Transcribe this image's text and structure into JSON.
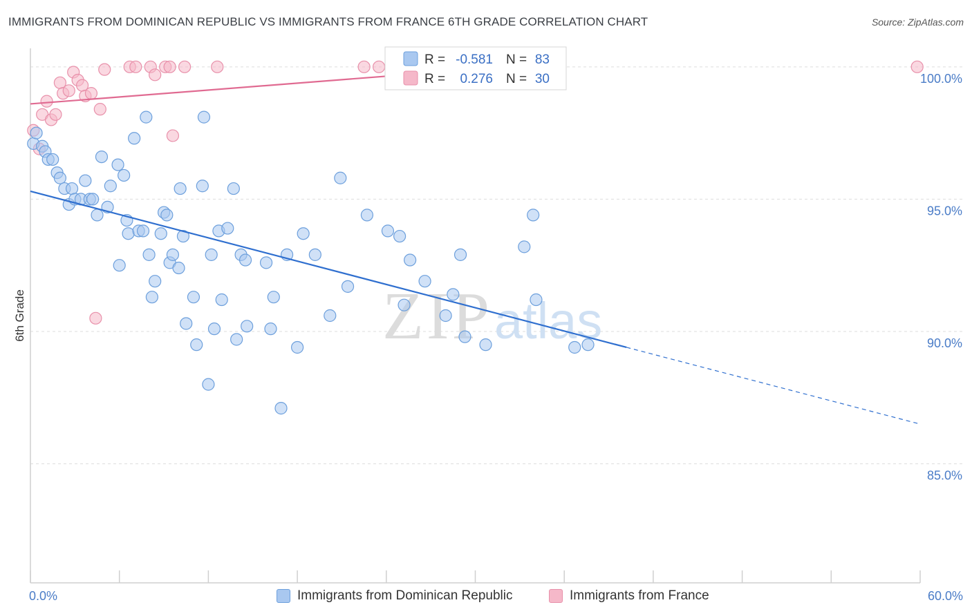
{
  "header": {
    "title": "IMMIGRANTS FROM DOMINICAN REPUBLIC VS IMMIGRANTS FROM FRANCE 6TH GRADE CORRELATION CHART",
    "source": "Source: ZipAtlas.com"
  },
  "watermark": {
    "zip": "ZIP",
    "atlas": "atlas"
  },
  "stats_box": {
    "rows": [
      {
        "r_label": "R =",
        "r_value": "-0.581",
        "n_label": "N =",
        "n_value": "83"
      },
      {
        "r_label": "R =",
        "r_value": "0.276",
        "n_label": "N =",
        "n_value": "30"
      }
    ]
  },
  "legend": {
    "series_a": "Immigrants from Dominican Republic",
    "series_b": "Immigrants from France"
  },
  "colors": {
    "blue_fill": "#a9c8f0",
    "blue_stroke": "#6c9fdc",
    "blue_line": "#2f6fcf",
    "pink_fill": "#f5b8c9",
    "pink_stroke": "#e890aa",
    "pink_line": "#e06a91",
    "tick_label": "#4a7cc7",
    "grid": "#dddddd"
  },
  "chart_data": {
    "type": "scatter",
    "title": "IMMIGRANTS FROM DOMINICAN REPUBLIC VS IMMIGRANTS FROM FRANCE 6TH GRADE CORRELATION CHART",
    "xlabel": "",
    "ylabel": "6th Grade",
    "xlim": [
      0,
      60
    ],
    "ylim": [
      80.5,
      100.7
    ],
    "x_tick_labels": [
      {
        "value": 0,
        "label": "0.0%"
      },
      {
        "value": 60,
        "label": "60.0%"
      }
    ],
    "y_ticks": [
      {
        "value": 100,
        "label": "100.0%"
      },
      {
        "value": 95,
        "label": "95.0%"
      },
      {
        "value": 90,
        "label": "90.0%"
      },
      {
        "value": 85,
        "label": "85.0%"
      }
    ],
    "grid": true,
    "legend_position": "bottom",
    "series": [
      {
        "name": "Immigrants from Dominican Republic",
        "color": "#a9c8f0",
        "trend": {
          "x": [
            0,
            40.2
          ],
          "y": [
            95.3,
            89.4
          ],
          "dashed_to": [
            60,
            86.5
          ]
        },
        "points": [
          [
            0.2,
            97.1
          ],
          [
            0.4,
            97.5
          ],
          [
            0.8,
            97.0
          ],
          [
            1.0,
            96.8
          ],
          [
            1.2,
            96.5
          ],
          [
            1.5,
            96.5
          ],
          [
            1.8,
            96.0
          ],
          [
            2.0,
            95.8
          ],
          [
            2.3,
            95.4
          ],
          [
            2.6,
            94.8
          ],
          [
            2.8,
            95.4
          ],
          [
            3.0,
            95.0
          ],
          [
            3.4,
            95.0
          ],
          [
            3.7,
            95.7
          ],
          [
            4.0,
            95.0
          ],
          [
            4.2,
            95.0
          ],
          [
            4.5,
            94.4
          ],
          [
            4.8,
            96.6
          ],
          [
            5.2,
            94.7
          ],
          [
            5.4,
            95.5
          ],
          [
            5.9,
            96.3
          ],
          [
            6.0,
            92.5
          ],
          [
            6.3,
            95.9
          ],
          [
            6.5,
            94.2
          ],
          [
            6.6,
            93.7
          ],
          [
            7.0,
            97.3
          ],
          [
            7.3,
            93.8
          ],
          [
            7.6,
            93.8
          ],
          [
            7.8,
            98.1
          ],
          [
            8.0,
            92.9
          ],
          [
            8.2,
            91.3
          ],
          [
            8.4,
            91.9
          ],
          [
            8.8,
            93.7
          ],
          [
            9.0,
            94.5
          ],
          [
            9.2,
            94.4
          ],
          [
            9.4,
            92.6
          ],
          [
            9.6,
            92.9
          ],
          [
            10.0,
            92.4
          ],
          [
            10.1,
            95.4
          ],
          [
            10.3,
            93.6
          ],
          [
            10.5,
            90.3
          ],
          [
            11.0,
            91.3
          ],
          [
            11.2,
            89.5
          ],
          [
            11.6,
            95.5
          ],
          [
            11.7,
            98.1
          ],
          [
            12.0,
            88.0
          ],
          [
            12.2,
            92.9
          ],
          [
            12.4,
            90.1
          ],
          [
            12.7,
            93.8
          ],
          [
            12.9,
            91.2
          ],
          [
            13.3,
            93.9
          ],
          [
            13.7,
            95.4
          ],
          [
            13.9,
            89.7
          ],
          [
            14.2,
            92.9
          ],
          [
            14.5,
            92.7
          ],
          [
            14.6,
            90.2
          ],
          [
            15.9,
            92.6
          ],
          [
            16.2,
            90.1
          ],
          [
            16.4,
            91.3
          ],
          [
            16.9,
            87.1
          ],
          [
            17.3,
            92.9
          ],
          [
            18.0,
            89.4
          ],
          [
            18.4,
            93.7
          ],
          [
            19.2,
            92.9
          ],
          [
            20.2,
            90.6
          ],
          [
            20.9,
            95.8
          ],
          [
            21.4,
            91.7
          ],
          [
            22.7,
            94.4
          ],
          [
            24.1,
            93.8
          ],
          [
            24.9,
            93.6
          ],
          [
            25.2,
            91.0
          ],
          [
            25.6,
            92.7
          ],
          [
            26.6,
            91.9
          ],
          [
            28.0,
            90.6
          ],
          [
            28.5,
            91.4
          ],
          [
            29.0,
            92.9
          ],
          [
            29.3,
            89.8
          ],
          [
            30.7,
            89.5
          ],
          [
            33.3,
            93.2
          ],
          [
            33.9,
            94.4
          ],
          [
            34.1,
            91.2
          ],
          [
            36.7,
            89.4
          ],
          [
            37.6,
            89.5
          ]
        ]
      },
      {
        "name": "Immigrants from France",
        "color": "#f5b8c9",
        "trend": {
          "x": [
            0,
            34.4
          ],
          "y": [
            98.6,
            100.1
          ]
        },
        "points": [
          [
            0.2,
            97.6
          ],
          [
            0.6,
            96.9
          ],
          [
            0.8,
            98.2
          ],
          [
            1.1,
            98.7
          ],
          [
            1.4,
            98.0
          ],
          [
            1.7,
            98.2
          ],
          [
            2.0,
            99.4
          ],
          [
            2.2,
            99.0
          ],
          [
            2.6,
            99.1
          ],
          [
            2.9,
            99.8
          ],
          [
            3.2,
            99.5
          ],
          [
            3.5,
            99.3
          ],
          [
            3.7,
            98.9
          ],
          [
            4.1,
            99.0
          ],
          [
            4.4,
            90.5
          ],
          [
            4.7,
            98.4
          ],
          [
            5.0,
            99.9
          ],
          [
            6.7,
            100.0
          ],
          [
            7.1,
            100.0
          ],
          [
            8.1,
            100.0
          ],
          [
            8.4,
            99.7
          ],
          [
            9.1,
            100.0
          ],
          [
            9.4,
            100.0
          ],
          [
            9.6,
            97.4
          ],
          [
            10.4,
            100.0
          ],
          [
            12.6,
            100.0
          ],
          [
            22.5,
            100.0
          ],
          [
            23.5,
            100.0
          ],
          [
            33.1,
            100.0
          ],
          [
            59.8,
            100.0
          ]
        ]
      }
    ]
  }
}
